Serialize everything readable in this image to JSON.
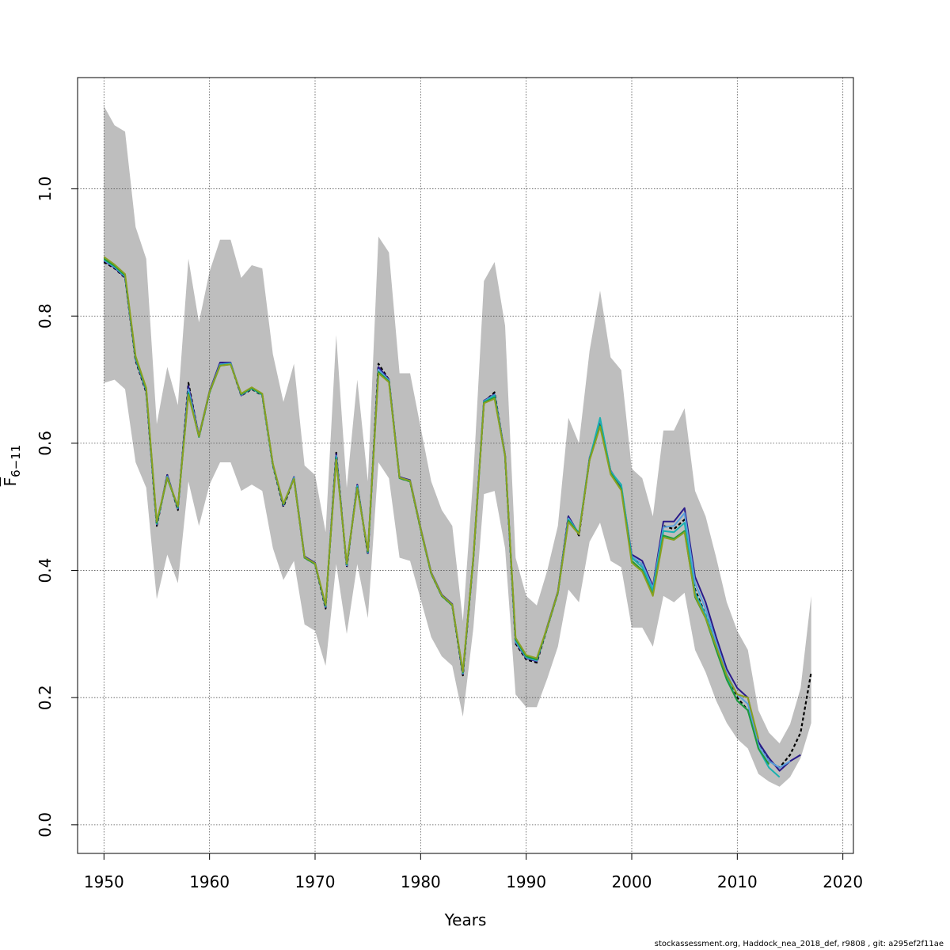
{
  "chart_data": {
    "type": "line",
    "xlabel": "Years",
    "ylabel": "F",
    "ylabel_sub": "6−11",
    "xlim": [
      1947.5,
      2021
    ],
    "ylim": [
      -0.045,
      1.175
    ],
    "x_ticks": [
      1950,
      1960,
      1970,
      1980,
      1990,
      2000,
      2010,
      2020
    ],
    "y_ticks": [
      0.0,
      0.2,
      0.4,
      0.6,
      0.8,
      1.0
    ],
    "y_tick_labels": [
      "0.0",
      "0.2",
      "0.4",
      "0.6",
      "0.8",
      "1.0"
    ],
    "grid": true,
    "band_color": "#bebebe",
    "band": {
      "x": [
        1950,
        1951,
        1952,
        1953,
        1954,
        1955,
        1956,
        1957,
        1958,
        1959,
        1960,
        1961,
        1962,
        1963,
        1964,
        1965,
        1966,
        1967,
        1968,
        1969,
        1970,
        1971,
        1972,
        1973,
        1974,
        1975,
        1976,
        1977,
        1978,
        1979,
        1980,
        1981,
        1982,
        1983,
        1984,
        1985,
        1986,
        1987,
        1988,
        1989,
        1990,
        1991,
        1992,
        1993,
        1994,
        1995,
        1996,
        1997,
        1998,
        1999,
        2000,
        2001,
        2002,
        2003,
        2004,
        2005,
        2006,
        2007,
        2008,
        2009,
        2010,
        2011,
        2012,
        2013,
        2014,
        2015,
        2016,
        2017
      ],
      "upper": [
        1.13,
        1.1,
        1.09,
        0.94,
        0.89,
        0.63,
        0.72,
        0.66,
        0.89,
        0.79,
        0.87,
        0.92,
        0.92,
        0.86,
        0.88,
        0.875,
        0.74,
        0.665,
        0.725,
        0.565,
        0.55,
        0.46,
        0.77,
        0.53,
        0.7,
        0.54,
        0.925,
        0.9,
        0.71,
        0.71,
        0.625,
        0.54,
        0.495,
        0.47,
        0.32,
        0.55,
        0.855,
        0.885,
        0.785,
        0.42,
        0.36,
        0.345,
        0.4,
        0.47,
        0.64,
        0.6,
        0.745,
        0.84,
        0.735,
        0.715,
        0.56,
        0.545,
        0.485,
        0.62,
        0.62,
        0.655,
        0.525,
        0.485,
        0.42,
        0.35,
        0.305,
        0.275,
        0.18,
        0.145,
        0.128,
        0.158,
        0.215,
        0.36
      ],
      "lower": [
        0.695,
        0.7,
        0.685,
        0.57,
        0.53,
        0.355,
        0.425,
        0.38,
        0.54,
        0.47,
        0.535,
        0.57,
        0.57,
        0.525,
        0.535,
        0.525,
        0.435,
        0.385,
        0.415,
        0.315,
        0.305,
        0.25,
        0.41,
        0.3,
        0.41,
        0.325,
        0.57,
        0.545,
        0.42,
        0.415,
        0.355,
        0.295,
        0.265,
        0.25,
        0.17,
        0.31,
        0.52,
        0.525,
        0.435,
        0.205,
        0.185,
        0.185,
        0.23,
        0.28,
        0.37,
        0.35,
        0.445,
        0.475,
        0.415,
        0.405,
        0.31,
        0.31,
        0.28,
        0.36,
        0.35,
        0.365,
        0.275,
        0.24,
        0.195,
        0.16,
        0.135,
        0.12,
        0.08,
        0.068,
        0.06,
        0.075,
        0.105,
        0.16
      ]
    },
    "series": [
      {
        "color": "#000000",
        "dashed": true,
        "x": [
          1950,
          1951,
          1952,
          1953,
          1954,
          1955,
          1956,
          1957,
          1958,
          1959,
          1960,
          1961,
          1962,
          1963,
          1964,
          1965,
          1966,
          1967,
          1968,
          1969,
          1970,
          1971,
          1972,
          1973,
          1974,
          1975,
          1976,
          1977,
          1978,
          1979,
          1980,
          1981,
          1982,
          1983,
          1984,
          1985,
          1986,
          1987,
          1988,
          1989,
          1990,
          1991,
          1992,
          1993,
          1994,
          1995,
          1996,
          1997,
          1998,
          1999,
          2000,
          2001,
          2002,
          2003,
          2004,
          2005,
          2006,
          2007,
          2008,
          2009,
          2010,
          2011,
          2012,
          2013,
          2014,
          2015,
          2016,
          2017
        ],
        "values": [
          0.885,
          0.875,
          0.86,
          0.73,
          0.68,
          0.47,
          0.55,
          0.495,
          0.695,
          0.61,
          0.68,
          0.725,
          0.725,
          0.675,
          0.685,
          0.675,
          0.565,
          0.5,
          0.545,
          0.42,
          0.41,
          0.34,
          0.585,
          0.405,
          0.535,
          0.425,
          0.725,
          0.7,
          0.545,
          0.54,
          0.465,
          0.395,
          0.36,
          0.345,
          0.235,
          0.42,
          0.665,
          0.68,
          0.58,
          0.285,
          0.26,
          0.255,
          0.31,
          0.365,
          0.485,
          0.455,
          0.575,
          0.635,
          0.555,
          0.53,
          0.42,
          0.41,
          0.37,
          0.47,
          0.465,
          0.48,
          0.37,
          0.33,
          0.28,
          0.235,
          0.2,
          0.18,
          0.13,
          0.1,
          0.09,
          0.11,
          0.145,
          0.24
        ]
      },
      {
        "color": "#2a1a8a",
        "x": [
          1950,
          1951,
          1952,
          1953,
          1954,
          1955,
          1956,
          1957,
          1958,
          1959,
          1960,
          1961,
          1962,
          1963,
          1964,
          1965,
          1966,
          1967,
          1968,
          1969,
          1970,
          1971,
          1972,
          1973,
          1974,
          1975,
          1976,
          1977,
          1978,
          1979,
          1980,
          1981,
          1982,
          1983,
          1984,
          1985,
          1986,
          1987,
          1988,
          1989,
          1990,
          1991,
          1992,
          1993,
          1994,
          1995,
          1996,
          1997,
          1998,
          1999,
          2000,
          2001,
          2002,
          2003,
          2004,
          2005,
          2006,
          2007,
          2008,
          2009,
          2010,
          2011,
          2012,
          2013,
          2014,
          2015,
          2016
        ],
        "values": [
          0.887,
          0.876,
          0.861,
          0.732,
          0.682,
          0.472,
          0.55,
          0.497,
          0.69,
          0.612,
          0.682,
          0.727,
          0.727,
          0.675,
          0.687,
          0.677,
          0.567,
          0.502,
          0.547,
          0.422,
          0.412,
          0.342,
          0.583,
          0.407,
          0.535,
          0.427,
          0.72,
          0.7,
          0.547,
          0.542,
          0.467,
          0.397,
          0.362,
          0.347,
          0.237,
          0.422,
          0.667,
          0.677,
          0.582,
          0.287,
          0.262,
          0.257,
          0.312,
          0.367,
          0.485,
          0.457,
          0.577,
          0.632,
          0.557,
          0.532,
          0.425,
          0.415,
          0.375,
          0.477,
          0.477,
          0.498,
          0.39,
          0.35,
          0.295,
          0.245,
          0.215,
          0.2,
          0.13,
          0.105,
          0.085,
          0.1,
          0.11
        ]
      },
      {
        "color": "#5aa0dc",
        "x": [
          1950,
          1951,
          1952,
          1953,
          1954,
          1955,
          1956,
          1957,
          1958,
          1959,
          1960,
          1961,
          1962,
          1963,
          1964,
          1965,
          1966,
          1967,
          1968,
          1969,
          1970,
          1971,
          1972,
          1973,
          1974,
          1975,
          1976,
          1977,
          1978,
          1979,
          1980,
          1981,
          1982,
          1983,
          1984,
          1985,
          1986,
          1987,
          1988,
          1989,
          1990,
          1991,
          1992,
          1993,
          1994,
          1995,
          1996,
          1997,
          1998,
          1999,
          2000,
          2001,
          2002,
          2003,
          2004,
          2005,
          2006,
          2007,
          2008,
          2009,
          2010,
          2011,
          2012,
          2013,
          2014,
          2015
        ],
        "values": [
          0.888,
          0.877,
          0.862,
          0.733,
          0.683,
          0.473,
          0.548,
          0.498,
          0.685,
          0.611,
          0.681,
          0.724,
          0.726,
          0.676,
          0.686,
          0.676,
          0.566,
          0.503,
          0.546,
          0.421,
          0.411,
          0.343,
          0.58,
          0.408,
          0.533,
          0.428,
          0.716,
          0.699,
          0.546,
          0.541,
          0.466,
          0.396,
          0.361,
          0.346,
          0.238,
          0.421,
          0.666,
          0.676,
          0.581,
          0.288,
          0.263,
          0.258,
          0.311,
          0.366,
          0.482,
          0.458,
          0.576,
          0.638,
          0.556,
          0.534,
          0.422,
          0.41,
          0.372,
          0.468,
          0.47,
          0.49,
          0.38,
          0.34,
          0.287,
          0.238,
          0.205,
          0.19,
          0.125,
          0.1,
          0.09,
          0.1
        ]
      },
      {
        "color": "#1ab0b0",
        "x": [
          1950,
          1951,
          1952,
          1953,
          1954,
          1955,
          1956,
          1957,
          1958,
          1959,
          1960,
          1961,
          1962,
          1963,
          1964,
          1965,
          1966,
          1967,
          1968,
          1969,
          1970,
          1971,
          1972,
          1973,
          1974,
          1975,
          1976,
          1977,
          1978,
          1979,
          1980,
          1981,
          1982,
          1983,
          1984,
          1985,
          1986,
          1987,
          1988,
          1989,
          1990,
          1991,
          1992,
          1993,
          1994,
          1995,
          1996,
          1997,
          1998,
          1999,
          2000,
          2001,
          2002,
          2003,
          2004,
          2005,
          2006,
          2007,
          2008,
          2009,
          2010,
          2011,
          2012,
          2013,
          2014
        ],
        "values": [
          0.889,
          0.878,
          0.863,
          0.734,
          0.684,
          0.474,
          0.547,
          0.499,
          0.68,
          0.61,
          0.68,
          0.723,
          0.725,
          0.677,
          0.686,
          0.676,
          0.566,
          0.504,
          0.545,
          0.42,
          0.41,
          0.344,
          0.578,
          0.409,
          0.532,
          0.429,
          0.712,
          0.698,
          0.545,
          0.54,
          0.465,
          0.395,
          0.36,
          0.345,
          0.239,
          0.42,
          0.665,
          0.675,
          0.58,
          0.29,
          0.264,
          0.259,
          0.31,
          0.365,
          0.48,
          0.459,
          0.575,
          0.64,
          0.555,
          0.535,
          0.42,
          0.405,
          0.368,
          0.462,
          0.46,
          0.475,
          0.365,
          0.33,
          0.28,
          0.232,
          0.195,
          0.18,
          0.12,
          0.09,
          0.075
        ]
      },
      {
        "color": "#1f9a3a",
        "x": [
          1950,
          1951,
          1952,
          1953,
          1954,
          1955,
          1956,
          1957,
          1958,
          1959,
          1960,
          1961,
          1962,
          1963,
          1964,
          1965,
          1966,
          1967,
          1968,
          1969,
          1970,
          1971,
          1972,
          1973,
          1974,
          1975,
          1976,
          1977,
          1978,
          1979,
          1980,
          1981,
          1982,
          1983,
          1984,
          1985,
          1986,
          1987,
          1988,
          1989,
          1990,
          1991,
          1992,
          1993,
          1994,
          1995,
          1996,
          1997,
          1998,
          1999,
          2000,
          2001,
          2002,
          2003,
          2004,
          2005,
          2006,
          2007,
          2008,
          2009,
          2010,
          2011,
          2012,
          2013
        ],
        "values": [
          0.89,
          0.879,
          0.864,
          0.735,
          0.685,
          0.475,
          0.545,
          0.5,
          0.678,
          0.61,
          0.68,
          0.722,
          0.724,
          0.677,
          0.687,
          0.677,
          0.567,
          0.504,
          0.544,
          0.42,
          0.41,
          0.345,
          0.575,
          0.41,
          0.53,
          0.43,
          0.712,
          0.697,
          0.545,
          0.54,
          0.465,
          0.395,
          0.36,
          0.345,
          0.24,
          0.42,
          0.664,
          0.672,
          0.58,
          0.292,
          0.265,
          0.26,
          0.31,
          0.365,
          0.478,
          0.458,
          0.574,
          0.628,
          0.553,
          0.528,
          0.415,
          0.4,
          0.362,
          0.455,
          0.45,
          0.462,
          0.358,
          0.325,
          0.275,
          0.228,
          0.195,
          0.18,
          0.12,
          0.095
        ]
      },
      {
        "color": "#8aa020",
        "x": [
          1950,
          1951,
          1952,
          1953,
          1954,
          1955,
          1956,
          1957,
          1958,
          1959,
          1960,
          1961,
          1962,
          1963,
          1964,
          1965,
          1966,
          1967,
          1968,
          1969,
          1970,
          1971,
          1972,
          1973,
          1974,
          1975,
          1976,
          1977,
          1978,
          1979,
          1980,
          1981,
          1982,
          1983,
          1984,
          1985,
          1986,
          1987,
          1988,
          1989,
          1990,
          1991,
          1992,
          1993,
          1994,
          1995,
          1996,
          1997,
          1998,
          1999,
          2000,
          2001,
          2002,
          2003,
          2004,
          2005,
          2006,
          2007,
          2008,
          2009,
          2010,
          2011,
          2012
        ],
        "values": [
          0.893,
          0.881,
          0.866,
          0.737,
          0.687,
          0.477,
          0.546,
          0.501,
          0.676,
          0.611,
          0.681,
          0.722,
          0.724,
          0.678,
          0.688,
          0.678,
          0.568,
          0.505,
          0.544,
          0.421,
          0.411,
          0.346,
          0.574,
          0.411,
          0.529,
          0.431,
          0.71,
          0.696,
          0.546,
          0.541,
          0.466,
          0.396,
          0.361,
          0.346,
          0.241,
          0.421,
          0.663,
          0.67,
          0.581,
          0.294,
          0.267,
          0.262,
          0.311,
          0.366,
          0.476,
          0.457,
          0.573,
          0.626,
          0.551,
          0.526,
          0.412,
          0.398,
          0.36,
          0.452,
          0.448,
          0.46,
          0.36,
          0.325,
          0.28,
          0.235,
          0.205,
          0.2,
          0.135
        ]
      }
    ]
  },
  "footer": "stockassessment.org, Haddock_nea_2018_def, r9808 , git: a295ef2f11ae"
}
